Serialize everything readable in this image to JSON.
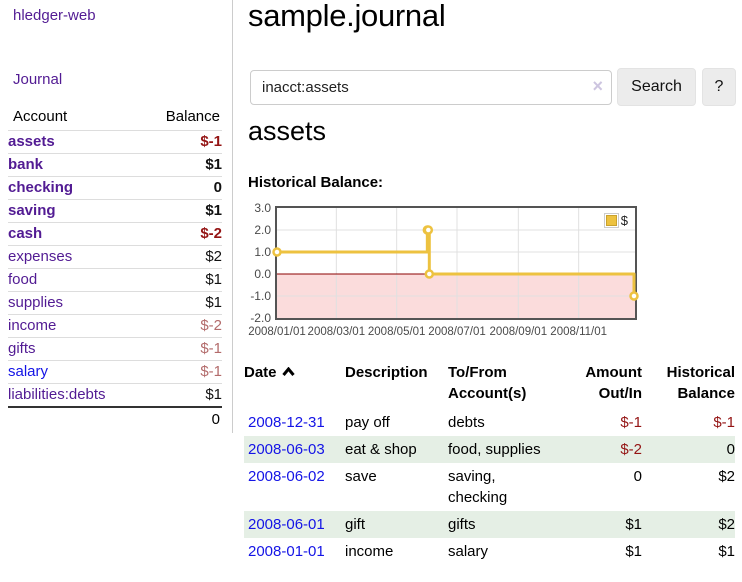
{
  "sidebar": {
    "app_title": "hledger-web",
    "journal_link": "Journal",
    "table": {
      "account_header": "Account",
      "balance_header": "Balance",
      "accounts": [
        {
          "name": "assets",
          "balance": "$-1",
          "cls": "d1 sel",
          "bcls": "neg"
        },
        {
          "name": "bank",
          "balance": "$1",
          "cls": "d2 sel",
          "bcls": ""
        },
        {
          "name": "checking",
          "balance": "0",
          "cls": "d3 sel",
          "bcls": ""
        },
        {
          "name": "saving",
          "balance": "$1",
          "cls": "d3 sel",
          "bcls": ""
        },
        {
          "name": "cash",
          "balance": "$-2",
          "cls": "d2 sel",
          "bcls": "neg"
        },
        {
          "name": "expenses",
          "balance": "$2",
          "cls": "d1",
          "bcls": ""
        },
        {
          "name": "food",
          "balance": "$1",
          "cls": "d2",
          "bcls": ""
        },
        {
          "name": "supplies",
          "balance": "$1",
          "cls": "d2",
          "bcls": ""
        },
        {
          "name": "income",
          "balance": "$-2",
          "cls": "d1",
          "bcls": "negm"
        },
        {
          "name": "gifts",
          "balance": "$-1",
          "cls": "d2",
          "bcls": "negm"
        },
        {
          "name": "salary",
          "balance": "$-1",
          "cls": "d2 unvisited",
          "bcls": "negm"
        },
        {
          "name": "liabilities:debts",
          "balance": "$1",
          "cls": "d1",
          "bcls": ""
        }
      ],
      "total": "0"
    }
  },
  "header": {
    "title": "sample.journal",
    "search": {
      "value": "inacct:assets",
      "clear_icon": "×",
      "search_button": "Search",
      "help_button": "?"
    }
  },
  "main": {
    "account_heading": "assets",
    "chart_title": "Historical Balance:"
  },
  "chart_data": {
    "type": "line",
    "title": "Historical Balance:",
    "series": [
      {
        "name": "$",
        "color": "#edc240",
        "step": true,
        "points": [
          [
            "2008-01-01",
            1
          ],
          [
            "2008-06-01",
            2
          ],
          [
            "2008-06-02",
            2
          ],
          [
            "2008-06-03",
            0
          ],
          [
            "2008-12-31",
            -1
          ]
        ]
      }
    ],
    "ylim": [
      -2,
      3
    ],
    "yticks": [
      "3.0",
      "2.0",
      "1.0",
      "0.0",
      "-1.0",
      "-2.0"
    ],
    "xticks": [
      "2008/01/01",
      "2008/03/01",
      "2008/05/01",
      "2008/07/01",
      "2008/09/01",
      "2008/11/01"
    ],
    "x_start": "2008-01-01",
    "x_end": "2008-12-31",
    "legend_position": "top-right",
    "grid": true,
    "gridline_color": "#e0e0e0",
    "negative_region_color": "#fbdcdc",
    "zero_line_color": "#8b0000",
    "border_color": "#545454"
  },
  "register": {
    "date_sort": "ascending",
    "columns": [
      "Date",
      "Description",
      "To/From Account(s)",
      "Amount Out/In",
      "Historical Balance"
    ],
    "rows": [
      {
        "date": "2008-12-31",
        "description": "pay off",
        "accounts": "debts",
        "amount": "$-1",
        "acls": "neg",
        "balance": "$-1",
        "bcls": "neg"
      },
      {
        "date": "2008-06-03",
        "description": "eat & shop",
        "accounts": "food, supplies",
        "amount": "$-2",
        "acls": "neg",
        "balance": "0",
        "bcls": ""
      },
      {
        "date": "2008-06-02",
        "description": "save",
        "accounts": "saving, checking",
        "amount": "0",
        "acls": "",
        "balance": "$2",
        "bcls": ""
      },
      {
        "date": "2008-06-01",
        "description": "gift",
        "accounts": "gifts",
        "amount": "$1",
        "acls": "",
        "balance": "$2",
        "bcls": ""
      },
      {
        "date": "2008-01-01",
        "description": "income",
        "accounts": "salary",
        "amount": "$1",
        "acls": "",
        "balance": "$1",
        "bcls": ""
      }
    ]
  }
}
